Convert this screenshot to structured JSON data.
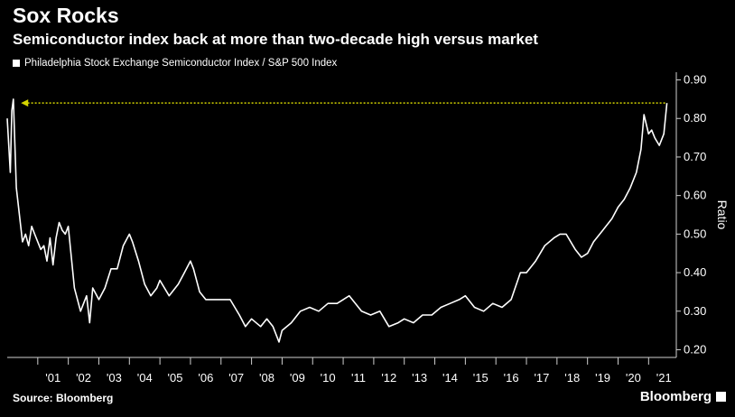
{
  "chart_data": {
    "type": "line",
    "title": "Sox Rocks",
    "subtitle": "Semiconductor index back at more than two-decade high versus market",
    "series": [
      {
        "name": "Philadelphia Stock Exchange Semiconductor Index / S&P 500 Index",
        "color": "#ffffff",
        "x": [
          2000.0,
          2000.1,
          2000.15,
          2000.2,
          2000.3,
          2000.4,
          2000.5,
          2000.6,
          2000.7,
          2000.8,
          2000.9,
          2001.0,
          2001.1,
          2001.2,
          2001.3,
          2001.4,
          2001.5,
          2001.6,
          2001.7,
          2001.8,
          2001.9,
          2002.0,
          2002.2,
          2002.4,
          2002.6,
          2002.7,
          2002.8,
          2003.0,
          2003.2,
          2003.4,
          2003.6,
          2003.8,
          2004.0,
          2004.1,
          2004.3,
          2004.5,
          2004.7,
          2004.9,
          2005.0,
          2005.3,
          2005.6,
          2005.8,
          2006.0,
          2006.1,
          2006.3,
          2006.5,
          2006.7,
          2007.0,
          2007.3,
          2007.6,
          2007.8,
          2008.0,
          2008.3,
          2008.5,
          2008.7,
          2008.9,
          2009.0,
          2009.3,
          2009.6,
          2009.9,
          2010.2,
          2010.5,
          2010.8,
          2011.0,
          2011.2,
          2011.4,
          2011.6,
          2011.9,
          2012.2,
          2012.5,
          2012.8,
          2013.0,
          2013.3,
          2013.6,
          2013.9,
          2014.2,
          2014.5,
          2014.8,
          2015.0,
          2015.3,
          2015.6,
          2015.9,
          2016.2,
          2016.5,
          2016.8,
          2017.0,
          2017.3,
          2017.6,
          2017.9,
          2018.1,
          2018.3,
          2018.6,
          2018.8,
          2019.0,
          2019.2,
          2019.5,
          2019.8,
          2020.0,
          2020.2,
          2020.4,
          2020.6,
          2020.75,
          2020.85,
          2021.0,
          2021.1,
          2021.2,
          2021.35,
          2021.5,
          2021.6
        ],
        "y": [
          0.8,
          0.66,
          0.82,
          0.85,
          0.62,
          0.55,
          0.48,
          0.5,
          0.47,
          0.52,
          0.5,
          0.48,
          0.46,
          0.47,
          0.43,
          0.49,
          0.42,
          0.49,
          0.53,
          0.51,
          0.5,
          0.52,
          0.36,
          0.3,
          0.34,
          0.27,
          0.36,
          0.33,
          0.36,
          0.41,
          0.41,
          0.47,
          0.5,
          0.48,
          0.43,
          0.37,
          0.34,
          0.36,
          0.38,
          0.34,
          0.37,
          0.4,
          0.43,
          0.41,
          0.35,
          0.33,
          0.33,
          0.33,
          0.33,
          0.29,
          0.26,
          0.28,
          0.26,
          0.28,
          0.26,
          0.22,
          0.25,
          0.27,
          0.3,
          0.31,
          0.3,
          0.32,
          0.32,
          0.33,
          0.34,
          0.32,
          0.3,
          0.29,
          0.3,
          0.26,
          0.27,
          0.28,
          0.27,
          0.29,
          0.29,
          0.31,
          0.32,
          0.33,
          0.34,
          0.31,
          0.3,
          0.32,
          0.31,
          0.33,
          0.4,
          0.4,
          0.43,
          0.47,
          0.49,
          0.5,
          0.5,
          0.46,
          0.44,
          0.45,
          0.48,
          0.51,
          0.54,
          0.57,
          0.59,
          0.62,
          0.66,
          0.72,
          0.81,
          0.76,
          0.77,
          0.75,
          0.73,
          0.76,
          0.84
        ]
      }
    ],
    "reference_line": {
      "y": 0.84,
      "color": "#d4d400",
      "style": "dotted-arrow"
    },
    "x_ticks": [
      "'01",
      "'02",
      "'03",
      "'04",
      "'05",
      "'06",
      "'07",
      "'08",
      "'09",
      "'10",
      "'11",
      "'12",
      "'13",
      "'14",
      "'15",
      "'16",
      "'17",
      "'18",
      "'19",
      "'20",
      "'21"
    ],
    "y_ticks": [
      "0.90",
      "0.80",
      "0.70",
      "0.60",
      "0.50",
      "0.40",
      "0.30",
      "0.20"
    ],
    "xlim": [
      2000.0,
      2021.7
    ],
    "ylim": [
      0.18,
      0.92
    ],
    "ylabel": "Ratio",
    "y_axis_side": "right",
    "grid": false
  },
  "footer": {
    "source": "Source: Bloomberg",
    "brand": "Bloomberg"
  }
}
